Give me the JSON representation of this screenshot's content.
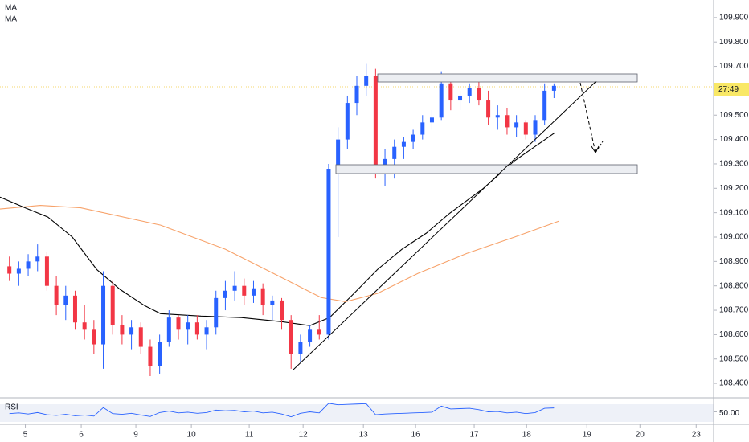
{
  "chart_data": [
    {
      "type": "candlestick",
      "x": [
        1,
        2,
        3,
        4,
        5,
        6,
        7,
        8,
        9,
        10,
        11,
        12,
        13,
        14,
        15,
        16,
        17,
        18,
        19,
        20,
        21,
        22,
        23,
        24,
        25,
        26,
        27,
        28,
        29,
        30,
        31,
        32,
        33,
        34,
        35,
        36,
        37,
        38,
        39,
        40,
        41,
        42,
        43,
        44,
        45,
        46,
        47,
        48,
        49,
        50,
        51,
        52,
        53,
        54,
        55,
        56,
        57,
        58,
        59
      ],
      "open": [
        108.88,
        108.85,
        108.87,
        108.9,
        108.92,
        108.8,
        108.72,
        108.76,
        108.65,
        108.62,
        108.56,
        108.8,
        108.64,
        108.6,
        108.63,
        108.55,
        108.47,
        108.57,
        108.67,
        108.62,
        108.65,
        108.6,
        108.63,
        108.75,
        108.78,
        108.8,
        108.76,
        108.79,
        108.72,
        108.74,
        108.66,
        108.52,
        108.57,
        108.62,
        108.6,
        109.28,
        109.4,
        109.55,
        109.62,
        109.66,
        109.28,
        109.32,
        109.37,
        109.39,
        109.42,
        109.47,
        109.49,
        109.63,
        109.56,
        109.58,
        109.61,
        109.56,
        109.49,
        109.5,
        109.45,
        109.47,
        109.42,
        109.48,
        109.6
      ],
      "high": [
        108.92,
        108.9,
        108.93,
        108.97,
        108.94,
        108.84,
        108.8,
        108.78,
        108.72,
        108.66,
        108.86,
        108.82,
        108.68,
        108.66,
        108.65,
        108.58,
        108.6,
        108.7,
        108.68,
        108.68,
        108.68,
        108.66,
        108.78,
        108.82,
        108.86,
        108.83,
        108.82,
        108.81,
        108.76,
        108.75,
        108.68,
        108.6,
        108.64,
        108.68,
        109.3,
        109.45,
        109.58,
        109.66,
        109.71,
        109.69,
        109.36,
        109.4,
        109.41,
        109.44,
        109.5,
        109.52,
        109.68,
        109.65,
        109.6,
        109.63,
        109.64,
        109.6,
        109.54,
        109.53,
        109.5,
        109.48,
        109.5,
        109.63,
        109.63
      ],
      "low": [
        108.82,
        108.8,
        108.84,
        108.86,
        108.78,
        108.68,
        108.66,
        108.62,
        108.58,
        108.52,
        108.46,
        108.6,
        108.56,
        108.54,
        108.52,
        108.43,
        108.44,
        108.55,
        108.58,
        108.56,
        108.58,
        108.54,
        108.6,
        108.7,
        108.74,
        108.72,
        108.73,
        108.68,
        108.66,
        108.62,
        108.46,
        108.49,
        108.55,
        108.58,
        108.58,
        109.0,
        109.36,
        109.5,
        109.58,
        109.24,
        109.21,
        109.24,
        109.32,
        109.36,
        109.4,
        109.44,
        109.48,
        109.52,
        109.52,
        109.55,
        109.54,
        109.46,
        109.44,
        109.42,
        109.41,
        109.4,
        109.39,
        109.46,
        109.57
      ],
      "close": [
        108.85,
        108.87,
        108.9,
        108.92,
        108.8,
        108.72,
        108.76,
        108.65,
        108.62,
        108.56,
        108.8,
        108.64,
        108.6,
        108.63,
        108.55,
        108.47,
        108.57,
        108.67,
        108.62,
        108.65,
        108.6,
        108.63,
        108.75,
        108.78,
        108.8,
        108.76,
        108.79,
        108.72,
        108.74,
        108.66,
        108.52,
        108.57,
        108.62,
        108.6,
        109.28,
        109.4,
        109.55,
        109.62,
        109.66,
        109.28,
        109.32,
        109.37,
        109.39,
        109.42,
        109.47,
        109.49,
        109.63,
        109.56,
        109.58,
        109.61,
        109.56,
        109.49,
        109.5,
        109.45,
        109.47,
        109.42,
        109.48,
        109.6,
        109.62
      ],
      "up_color": "#2962ff",
      "down_color": "#f23645",
      "series": [
        {
          "name": "MA",
          "color": "#000000",
          "x": [
            0,
            2.6,
            5.1,
            7.7,
            10.3,
            12.8,
            15.4,
            17.1,
            21.4,
            25.7,
            30.0,
            33.0,
            35.1,
            37.7,
            40.2,
            42.8,
            45.4,
            47.9,
            51.4,
            54.8,
            59.1
          ],
          "values": [
            109.164,
            109.121,
            109.082,
            109.0,
            108.867,
            108.785,
            108.719,
            108.686,
            108.676,
            108.67,
            108.653,
            108.637,
            108.67,
            108.769,
            108.867,
            108.95,
            109.016,
            109.098,
            109.197,
            109.313,
            109.428
          ]
        },
        {
          "name": "MA",
          "color": "#f7a26a",
          "x": [
            0,
            4.3,
            8.6,
            17.1,
            24.0,
            30.0,
            34.2,
            36.8,
            40.2,
            44.5,
            49.7,
            54.8,
            59.5
          ],
          "values": [
            109.115,
            109.13,
            109.12,
            109.049,
            108.95,
            108.834,
            108.752,
            108.735,
            108.769,
            108.851,
            108.933,
            109.0,
            109.065
          ]
        }
      ],
      "xlim": [
        0,
        76
      ],
      "xticks": [
        {
          "value": 2.7,
          "label": "5"
        },
        {
          "value": 8.65,
          "label": "6"
        },
        {
          "value": 14.47,
          "label": "9"
        },
        {
          "value": 20.38,
          "label": "10"
        },
        {
          "value": 26.54,
          "label": "11"
        },
        {
          "value": 32.28,
          "label": "12"
        },
        {
          "value": 38.7,
          "label": "13"
        },
        {
          "value": 44.26,
          "label": "16"
        },
        {
          "value": 50.5,
          "label": "17"
        },
        {
          "value": 56.08,
          "label": "18"
        },
        {
          "value": 62.5,
          "label": "19"
        },
        {
          "value": 68.15,
          "label": "20"
        },
        {
          "value": 74.14,
          "label": "23"
        }
      ],
      "ylim": [
        108.341,
        109.972
      ],
      "yticks": [
        {
          "value": 108.4,
          "label": "108.400"
        },
        {
          "value": 108.5,
          "label": "108.500"
        },
        {
          "value": 108.6,
          "label": "108.600"
        },
        {
          "value": 108.7,
          "label": "108.700"
        },
        {
          "value": 108.8,
          "label": "108.800"
        },
        {
          "value": 108.9,
          "label": "108.900"
        },
        {
          "value": 109.0,
          "label": "109.000"
        },
        {
          "value": 109.1,
          "label": "109.100"
        },
        {
          "value": 109.2,
          "label": "109.200"
        },
        {
          "value": 109.3,
          "label": "109.300"
        },
        {
          "value": 109.4,
          "label": "109.400"
        },
        {
          "value": 109.5,
          "label": "109.500"
        },
        {
          "value": 109.6,
          "label": "109.600"
        },
        {
          "value": 109.7,
          "label": "109.700"
        },
        {
          "value": 109.8,
          "label": "109.800"
        },
        {
          "value": 109.9,
          "label": "109.900"
        }
      ],
      "countdown": "27:49"
    },
    {
      "type": "line",
      "title": "RSI",
      "color": "#2962ff",
      "x": [
        1,
        2,
        3,
        4,
        5,
        6,
        7,
        8,
        9,
        10,
        11,
        12,
        13,
        14,
        15,
        16,
        17,
        18,
        19,
        20,
        21,
        22,
        23,
        24,
        25,
        26,
        27,
        28,
        29,
        30,
        31,
        32,
        33,
        34,
        35,
        36,
        37,
        38,
        39,
        40,
        41,
        42,
        43,
        44,
        45,
        46,
        47,
        48,
        49,
        50,
        51,
        52,
        53,
        54,
        55,
        56,
        57,
        58,
        59
      ],
      "values": [
        45,
        47,
        44,
        48,
        42,
        40,
        43,
        39,
        41,
        38,
        62,
        45,
        43,
        46,
        41,
        37,
        48,
        52,
        47,
        49,
        46,
        48,
        55,
        53,
        54,
        50,
        52,
        47,
        49,
        44,
        36,
        46,
        50,
        47,
        74,
        70,
        71,
        72,
        73,
        42,
        44,
        45,
        46,
        47,
        48,
        49,
        66,
        58,
        59,
        60,
        56,
        50,
        51,
        47,
        49,
        45,
        48,
        60,
        61
      ],
      "xlim": [
        0,
        76
      ],
      "ylim": [
        15,
        85
      ],
      "yticks": [
        {
          "value": 50,
          "label": "50.00"
        }
      ]
    }
  ]
}
